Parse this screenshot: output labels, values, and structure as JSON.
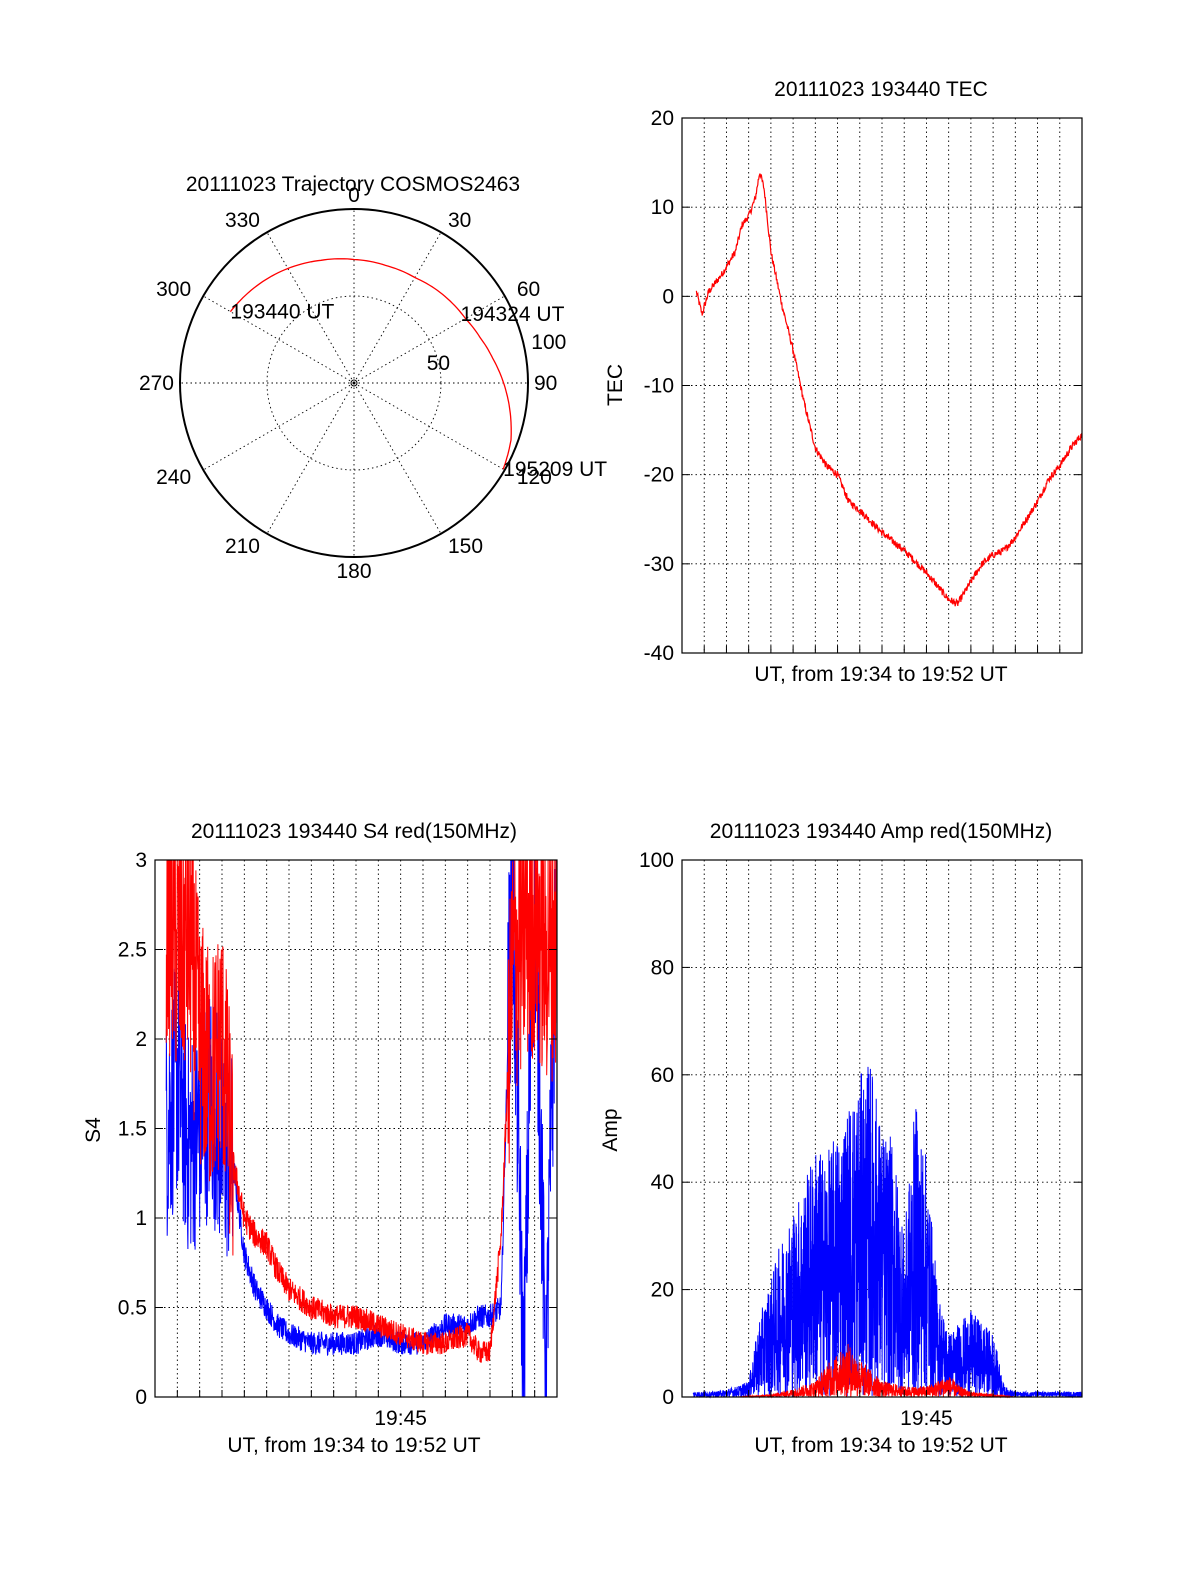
{
  "colors": {
    "red": "#ff0000",
    "blue": "#0000ff",
    "axis": "#000000",
    "background": "#ffffff"
  },
  "chart_data": [
    {
      "type": "polar",
      "title": "20111023 Trajectory COSMOS2463",
      "angle_labels": [
        "0",
        "30",
        "60",
        "90",
        "120",
        "150",
        "180",
        "210",
        "240",
        "270",
        "300",
        "330"
      ],
      "angle_values_deg": [
        0,
        30,
        60,
        90,
        120,
        150,
        180,
        210,
        240,
        270,
        300,
        330
      ],
      "radius_labels": [
        "50",
        "100"
      ],
      "radius_values": [
        50,
        100
      ],
      "rlim": [
        0,
        100
      ],
      "grid": true,
      "series": [
        {
          "color": "red",
          "x": [
            300,
            315,
            330,
            345,
            0,
            15,
            30,
            45,
            60,
            70,
            80,
            90,
            100,
            110,
            120
          ],
          "y": [
            82,
            79,
            76,
            73,
            71,
            70,
            70,
            72,
            74,
            77,
            81,
            86,
            91,
            96,
            99
          ]
        }
      ],
      "annotations": [
        {
          "label": "193440 UT",
          "azimuth": 300,
          "radius": 82
        },
        {
          "label": "194324 UT",
          "azimuth": 57,
          "radius": 73
        },
        {
          "label": "195209 UT",
          "azimuth": 120,
          "radius": 99
        }
      ]
    },
    {
      "type": "line",
      "title": "20111023 193440 TEC",
      "xlabel": "UT, from 19:34 to 19:52 UT",
      "ylabel": "TEC",
      "ylim": [
        -40,
        20
      ],
      "yticks": [
        "20",
        "10",
        "0",
        "-10",
        "-20",
        "-30",
        "-40"
      ],
      "ytick_values": [
        20,
        10,
        0,
        -10,
        -20,
        -30,
        -40
      ],
      "xlim_minutes": [
        0,
        18
      ],
      "grid": true,
      "series": [
        {
          "color": "red",
          "x": [
            0.65,
            0.9,
            1.2,
            1.8,
            2.4,
            2.7,
            3.0,
            3.3,
            3.5,
            3.7,
            4.0,
            4.5,
            5.0,
            5.5,
            6.0,
            6.5,
            7.0,
            7.5,
            8.0,
            9.0,
            10.0,
            11.0,
            12.0,
            12.4,
            13.0,
            13.5,
            14.0,
            14.5,
            15.0,
            15.5,
            16.0,
            16.5,
            17.0,
            17.5,
            18.0
          ],
          "y": [
            0.5,
            -2.0,
            0.5,
            2.5,
            5.0,
            8.0,
            9.0,
            11.0,
            14.0,
            12.0,
            5.0,
            -1.0,
            -6.0,
            -12.0,
            -17.0,
            -19.0,
            -20.0,
            -23.0,
            -24.0,
            -26.5,
            -28.5,
            -31.0,
            -34.0,
            -34.5,
            -32.0,
            -30.0,
            -29.0,
            -28.5,
            -27.0,
            -25.0,
            -23.0,
            -20.5,
            -19.0,
            -17.0,
            -15.5
          ]
        }
      ]
    },
    {
      "type": "line",
      "title": "20111023 193440 S4 red(150MHz)",
      "xlabel": "UT, from 19:34 to 19:52 UT",
      "ylabel": "S4",
      "ylim": [
        0,
        3
      ],
      "yticks": [
        "0",
        "0.5",
        "1",
        "1.5",
        "2",
        "2.5",
        "3"
      ],
      "ytick_values": [
        0,
        0.5,
        1,
        1.5,
        2,
        2.5,
        3
      ],
      "xtick_label": "19:45",
      "xtick_minutes": 11,
      "xlim_minutes": [
        0,
        18
      ],
      "grid": true,
      "series": [
        {
          "color": "blue",
          "x": [
            0.5,
            1.0,
            1.5,
            2.0,
            2.5,
            3.0,
            3.5,
            4.0,
            4.5,
            5.0,
            5.5,
            6.0,
            7.0,
            8.0,
            9.0,
            10.0,
            11.0,
            12.0,
            13.0,
            14.0,
            14.5,
            15.0,
            15.5,
            16.0,
            16.5,
            17.0,
            17.5,
            18.0
          ],
          "y": [
            1.5,
            1.8,
            1.4,
            1.5,
            1.7,
            1.4,
            1.3,
            0.8,
            0.6,
            0.5,
            0.4,
            0.35,
            0.3,
            0.3,
            0.3,
            0.35,
            0.3,
            0.3,
            0.4,
            0.4,
            0.45,
            0.45,
            0.5,
            3.0,
            0.1,
            3.0,
            0.1,
            3.0
          ]
        },
        {
          "color": "red",
          "x": [
            0.5,
            1.0,
            1.5,
            2.0,
            2.5,
            3.0,
            3.5,
            4.0,
            4.5,
            5.0,
            5.5,
            6.0,
            7.0,
            8.0,
            9.0,
            10.0,
            11.0,
            12.0,
            13.0,
            14.0,
            14.5,
            15.0,
            15.5,
            16.0,
            16.5,
            17.0,
            17.5,
            18.0
          ],
          "y": [
            2.8,
            2.5,
            2.6,
            2.0,
            1.8,
            2.0,
            1.3,
            1.0,
            0.9,
            0.85,
            0.7,
            0.6,
            0.5,
            0.45,
            0.45,
            0.4,
            0.35,
            0.3,
            0.3,
            0.35,
            0.25,
            0.25,
            0.9,
            2.4,
            2.6,
            2.7,
            2.5,
            2.6
          ]
        }
      ]
    },
    {
      "type": "line",
      "title": "20111023 193440 Amp red(150MHz)",
      "xlabel": "UT, from 19:34 to 19:52 UT",
      "ylabel": "Amp",
      "ylim": [
        0,
        100
      ],
      "yticks": [
        "0",
        "20",
        "40",
        "60",
        "80",
        "100"
      ],
      "ytick_values": [
        0,
        20,
        40,
        60,
        80,
        100
      ],
      "xtick_label": "19:45",
      "xtick_minutes": 11,
      "xlim_minutes": [
        0,
        18
      ],
      "grid": true,
      "series": [
        {
          "color": "blue",
          "x": [
            0.5,
            1.5,
            2.5,
            3.0,
            3.5,
            4.0,
            4.5,
            5.0,
            5.5,
            6.0,
            6.5,
            7.0,
            7.5,
            8.0,
            8.5,
            9.0,
            9.5,
            10.0,
            10.5,
            11.0,
            11.5,
            12.0,
            12.5,
            13.0,
            13.5,
            14.0,
            14.5,
            15.0,
            16.0,
            17.0,
            18.0
          ],
          "y": [
            1,
            1,
            2,
            3,
            15,
            22,
            30,
            35,
            40,
            47,
            45,
            50,
            55,
            60,
            63,
            50,
            48,
            30,
            55,
            45,
            20,
            12,
            14,
            16,
            14,
            12,
            2,
            1,
            1,
            1,
            1
          ]
        },
        {
          "color": "red",
          "x": [
            0.5,
            2.5,
            4.0,
            5.0,
            6.0,
            6.5,
            7.0,
            7.5,
            8.0,
            8.5,
            9.0,
            10.0,
            11.0,
            11.5,
            12.0,
            12.5,
            13.0,
            14.0,
            15.0,
            18.0
          ],
          "y": [
            0,
            0,
            0.5,
            1.5,
            3,
            6,
            8,
            10,
            7,
            5,
            3,
            2,
            2,
            3,
            4,
            2,
            1,
            0.5,
            0,
            0
          ]
        }
      ]
    }
  ]
}
